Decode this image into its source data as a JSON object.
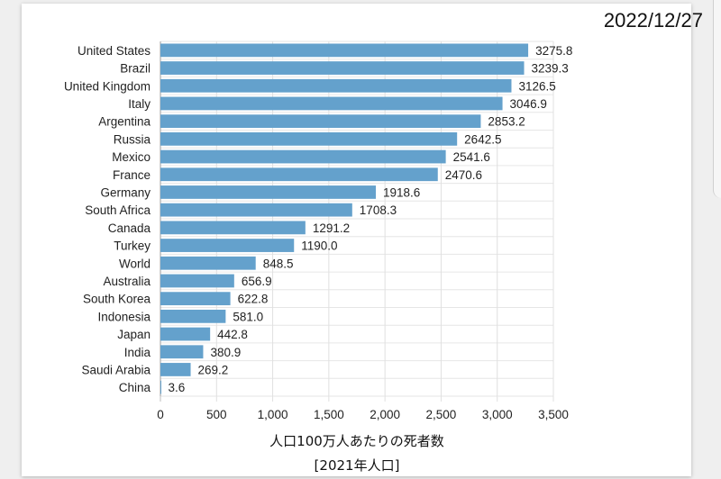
{
  "date_label": "2022/12/27",
  "chart_data": {
    "type": "bar",
    "orientation": "horizontal",
    "categories": [
      "United States",
      "Brazil",
      "United Kingdom",
      "Italy",
      "Argentina",
      "Russia",
      "Mexico",
      "France",
      "Germany",
      "South Africa",
      "Canada",
      "Turkey",
      "World",
      "Australia",
      "South Korea",
      "Indonesia",
      "Japan",
      "India",
      "Saudi Arabia",
      "China"
    ],
    "values": [
      3275.8,
      3239.3,
      3126.5,
      3046.9,
      2853.2,
      2642.5,
      2541.6,
      2470.6,
      1918.6,
      1708.3,
      1291.2,
      1190.0,
      848.5,
      656.9,
      622.8,
      581.0,
      442.8,
      380.9,
      269.2,
      3.6
    ],
    "value_labels": [
      "3275.8",
      "3239.3",
      "3126.5",
      "3046.9",
      "2853.2",
      "2642.5",
      "2541.6",
      "2470.6",
      "1918.6",
      "1708.3",
      "1291.2",
      "1190.0",
      "848.5",
      "656.9",
      "622.8",
      "581.0",
      "442.8",
      "380.9",
      "269.2",
      "3.6"
    ],
    "xlabel": "人口100万人あたりの死者数",
    "xlabel_sub": "[2021年人口]",
    "xlim": [
      0,
      3500
    ],
    "xticks": [
      0,
      500,
      1000,
      1500,
      2000,
      2500,
      3000,
      3500
    ],
    "xtick_labels": [
      "0",
      "500",
      "1,000",
      "1,500",
      "2,000",
      "2,500",
      "3,000",
      "3,500"
    ],
    "grid": true,
    "bar_color": "#64a1cc"
  }
}
